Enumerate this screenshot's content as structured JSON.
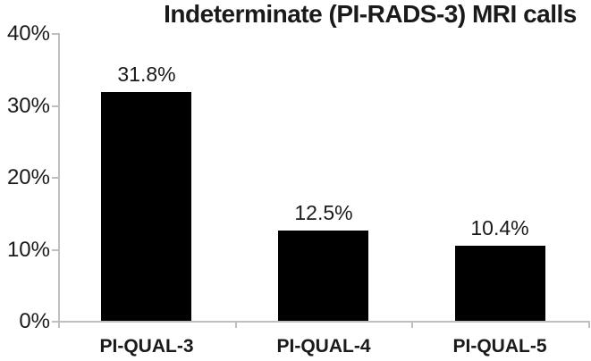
{
  "chart_data": {
    "type": "bar",
    "title": "Indeterminate (PI-RADS-3) MRI calls",
    "categories": [
      "PI-QUAL-3",
      "PI-QUAL-4",
      "PI-QUAL-5"
    ],
    "values": [
      31.8,
      12.5,
      10.4
    ],
    "data_labels": [
      "31.8%",
      "12.5%",
      "10.4%"
    ],
    "xlabel": "",
    "ylabel": "",
    "ylim": [
      0,
      40
    ],
    "yticks": [
      {
        "value": 0,
        "label": "0%"
      },
      {
        "value": 10,
        "label": "10%"
      },
      {
        "value": 20,
        "label": "20%"
      },
      {
        "value": 30,
        "label": "30%"
      },
      {
        "value": 40,
        "label": "40%"
      }
    ],
    "grid": "off",
    "legend": "none",
    "bar_color": "#000000",
    "axis_color": "#bfbfbf",
    "text_color": "#1a1a1a"
  }
}
